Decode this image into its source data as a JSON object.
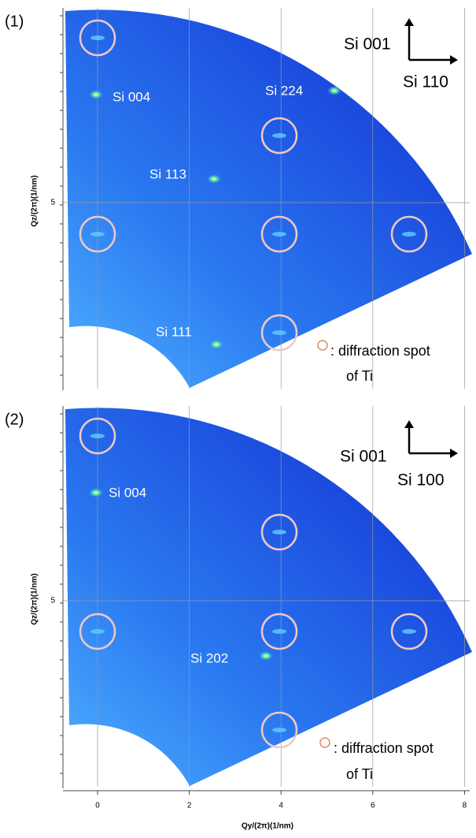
{
  "panels": [
    {
      "label": "(1)",
      "y_axis_label": "Qz/(2π)(1/nm)",
      "y_ticks": [
        5
      ],
      "spots": [
        "Si 004",
        "Si 224",
        "Si 113",
        "Si 111"
      ],
      "orientation": {
        "vertical": "Si 001",
        "horizontal": "Si 110"
      },
      "legend": {
        "line1": ": diffraction spot",
        "line2": "of Ti"
      }
    },
    {
      "label": "(2)",
      "y_axis_label": "Qz/(2π)(1/nm)",
      "y_ticks": [
        5
      ],
      "spots": [
        "Si 004",
        "Si 202"
      ],
      "orientation": {
        "vertical": "Si 001",
        "horizontal": "Si 100"
      },
      "legend": {
        "line1": ": diffraction spot",
        "line2": "of Ti"
      }
    }
  ],
  "x_axis": {
    "label": "Qy/(2π)(1/nm)",
    "ticks": [
      0,
      2,
      4,
      6,
      8
    ]
  }
}
